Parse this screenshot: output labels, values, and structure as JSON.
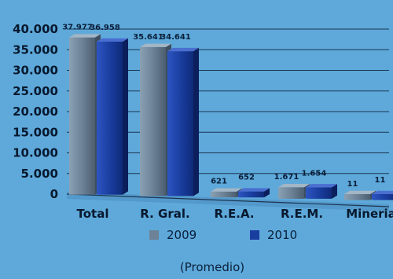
{
  "chart_data": {
    "type": "bar",
    "categories": [
      "Total",
      "R. Gral.",
      "R.E.A.",
      "R.E.M.",
      "Mineria"
    ],
    "series": [
      {
        "name": "2009",
        "values": [
          37977,
          35641,
          621,
          1671,
          11
        ],
        "labels": [
          "37.977",
          "35.641",
          "621",
          "1.671",
          "11"
        ],
        "color": "#6d8296"
      },
      {
        "name": "2010",
        "values": [
          36958,
          34641,
          652,
          1654,
          11
        ],
        "labels": [
          "36.958",
          "34.641",
          "652",
          "1.654",
          "11"
        ],
        "color": "#1a3ea0"
      }
    ],
    "ylim": [
      0,
      40000
    ],
    "yticks": [
      0,
      5000,
      10000,
      15000,
      20000,
      25000,
      30000,
      35000,
      40000
    ],
    "ytick_labels": [
      "0",
      "5.000",
      "10.000",
      "15.000",
      "20.000",
      "25.000",
      "30.000",
      "35.000",
      "40.000"
    ],
    "grid": true,
    "legend_position": "bottom",
    "note": "(Promedio)",
    "title": "",
    "xlabel": "",
    "ylabel": ""
  }
}
